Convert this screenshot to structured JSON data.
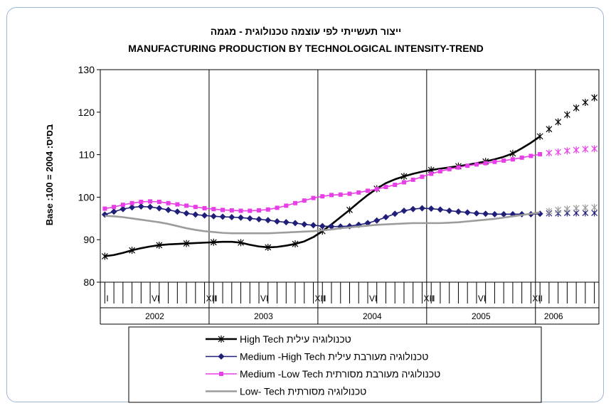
{
  "chart_data": {
    "type": "line",
    "title": "ייצור תעשייתי לפי עוצמה טכנולוגית - מגמה",
    "subtitle": "MANUFACTURING PRODUCTION BY TECHNOLOGICAL INTENSITY-TREND",
    "ylabel": "Base  :100 = 2004  :בסיס",
    "ylim": [
      80,
      130
    ],
    "yticks": [
      80,
      90,
      100,
      110,
      120,
      130
    ],
    "month_ticks": [
      {
        "x": 1,
        "label": "I"
      },
      {
        "x": 6,
        "label": "VI"
      },
      {
        "x": 12,
        "label": "XII"
      },
      {
        "x": 13,
        "label": "I"
      },
      {
        "x": 18,
        "label": "VI"
      },
      {
        "x": 24,
        "label": "XII"
      },
      {
        "x": 25,
        "label": "I"
      },
      {
        "x": 30,
        "label": "VI"
      },
      {
        "x": 36,
        "label": "XII"
      },
      {
        "x": 37,
        "label": "I"
      },
      {
        "x": 42,
        "label": "VI"
      },
      {
        "x": 48,
        "label": "XII"
      }
    ],
    "years": [
      {
        "label": "2002",
        "start": 1,
        "end": 12
      },
      {
        "label": "2003",
        "start": 13,
        "end": 24
      },
      {
        "label": "2004",
        "start": 25,
        "end": 36
      },
      {
        "label": "2005",
        "start": 37,
        "end": 48
      },
      {
        "label": "2006",
        "start": 49,
        "end": 52
      }
    ],
    "forecast_from": 49,
    "legend_position": "bottom",
    "series": [
      {
        "name": "טכנולוגיה עילית High Tech",
        "color": "#000000",
        "marker": "x",
        "values": [
          86.1,
          86.4,
          86.9,
          87.5,
          88.0,
          88.4,
          88.7,
          88.9,
          89.0,
          89.1,
          89.2,
          89.3,
          89.4,
          89.5,
          89.5,
          89.3,
          88.8,
          88.4,
          88.2,
          88.3,
          88.6,
          89.0,
          89.6,
          90.6,
          92.0,
          93.6,
          95.3,
          97.0,
          98.8,
          100.5,
          102.0,
          103.3,
          104.2,
          104.9,
          105.5,
          106.0,
          106.4,
          106.7,
          107.0,
          107.3,
          107.6,
          108.0,
          108.4,
          108.9,
          109.5,
          110.3,
          111.5,
          112.8,
          114.3,
          116.0,
          117.7,
          119.4,
          121.0,
          122.3,
          123.4
        ],
        "x_start": 1
      },
      {
        "name": "טכנולוגיה מעורבת עילית  Medium -High Tech",
        "color": "#1f1f7a",
        "marker": "diamond",
        "values": [
          95.9,
          96.6,
          97.2,
          97.6,
          97.8,
          97.7,
          97.4,
          97.0,
          96.6,
          96.2,
          95.9,
          95.7,
          95.5,
          95.4,
          95.3,
          95.2,
          95.0,
          94.8,
          94.6,
          94.3,
          94.1,
          93.9,
          93.6,
          93.4,
          93.2,
          93.1,
          93.1,
          93.2,
          93.5,
          93.9,
          94.5,
          95.3,
          96.1,
          96.8,
          97.2,
          97.4,
          97.3,
          97.1,
          96.8,
          96.6,
          96.4,
          96.2,
          96.1,
          96.0,
          96.0,
          96.0,
          96.0,
          96.0,
          96.1,
          96.2,
          96.2,
          96.3,
          96.3,
          96.3,
          96.3
        ],
        "x_start": 1
      },
      {
        "name": "טכנולוגיה מעורבת מסורתית  Medium -Low Tech",
        "color": "#e83ee8",
        "marker": "square",
        "values": [
          97.3,
          97.7,
          98.2,
          98.6,
          98.9,
          99.0,
          98.9,
          98.6,
          98.3,
          98.0,
          97.7,
          97.4,
          97.2,
          97.0,
          96.9,
          96.8,
          96.8,
          96.9,
          97.1,
          97.5,
          98.0,
          98.6,
          99.2,
          99.8,
          100.2,
          100.5,
          100.6,
          100.8,
          101.1,
          101.5,
          101.9,
          102.4,
          102.9,
          103.5,
          104.1,
          104.8,
          105.5,
          106.1,
          106.6,
          107.0,
          107.4,
          107.7,
          108.0,
          108.3,
          108.6,
          108.9,
          109.3,
          109.7,
          110.1,
          110.4,
          110.6,
          110.9,
          111.1,
          111.3,
          111.4
        ],
        "x_start": 1
      },
      {
        "name": "טכנולוגיה מסורתית   Low- Tech",
        "color": "#9c9c9c",
        "marker": "none",
        "values": [
          95.6,
          95.5,
          95.3,
          95.0,
          94.7,
          94.4,
          94.1,
          93.7,
          93.2,
          92.7,
          92.3,
          92.0,
          91.8,
          91.6,
          91.5,
          91.5,
          91.5,
          91.5,
          91.5,
          91.6,
          91.7,
          91.8,
          91.9,
          92.0,
          92.2,
          92.4,
          92.7,
          92.9,
          93.1,
          93.3,
          93.5,
          93.6,
          93.7,
          93.8,
          93.9,
          93.9,
          93.9,
          93.9,
          94.0,
          94.1,
          94.3,
          94.5,
          94.7,
          94.9,
          95.2,
          95.5,
          95.8,
          96.1,
          96.4,
          96.7,
          97.0,
          97.2,
          97.4,
          97.5,
          97.6
        ],
        "x_start": 1,
        "forecast_marker": "x"
      }
    ]
  }
}
